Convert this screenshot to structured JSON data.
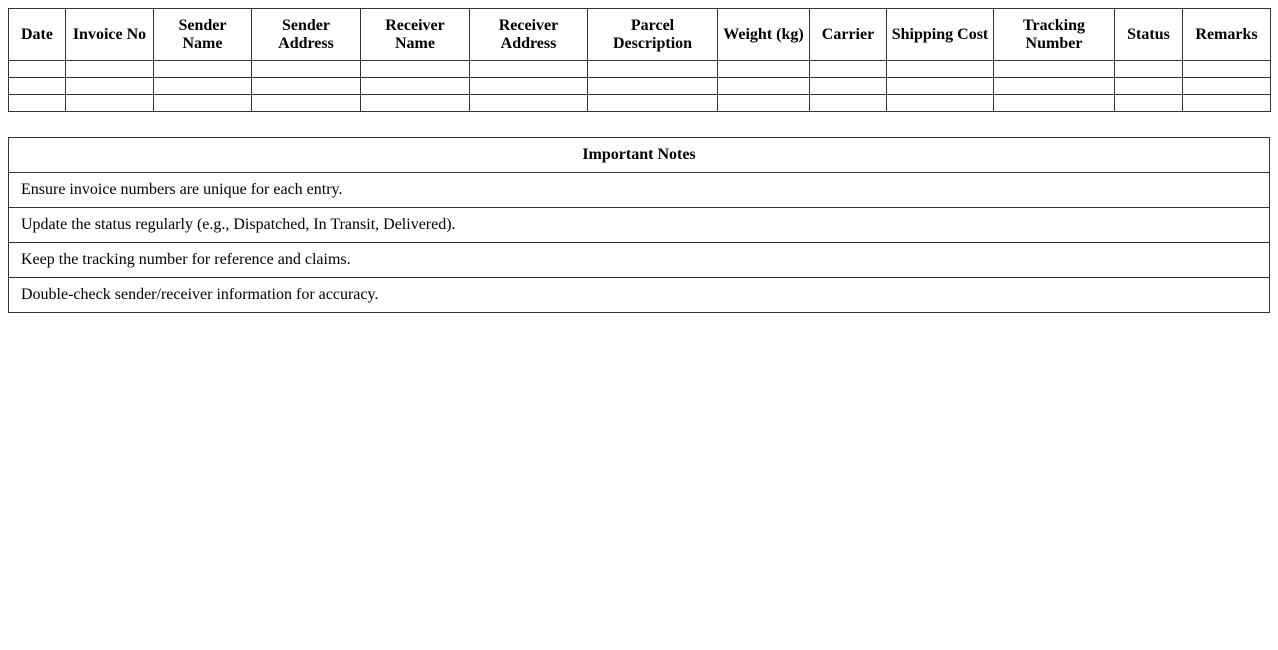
{
  "shipments": {
    "columns": [
      "Date",
      "Invoice No",
      "Sender Name",
      "Sender Address",
      "Receiver Name",
      "Receiver Address",
      "Parcel Description",
      "Weight (kg)",
      "Carrier",
      "Shipping Cost",
      "Tracking Number",
      "Status",
      "Remarks"
    ],
    "rows": [
      [
        "",
        "",
        "",
        "",
        "",
        "",
        "",
        "",
        "",
        "",
        "",
        "",
        ""
      ],
      [
        "",
        "",
        "",
        "",
        "",
        "",
        "",
        "",
        "",
        "",
        "",
        "",
        ""
      ],
      [
        "",
        "",
        "",
        "",
        "",
        "",
        "",
        "",
        "",
        "",
        "",
        "",
        ""
      ]
    ]
  },
  "notes": {
    "title": "Important Notes",
    "items": [
      "Ensure invoice numbers are unique for each entry.",
      "Update the status regularly (e.g., Dispatched, In Transit, Delivered).",
      "Keep the tracking number for reference and claims.",
      "Double-check sender/receiver information for accuracy."
    ]
  }
}
